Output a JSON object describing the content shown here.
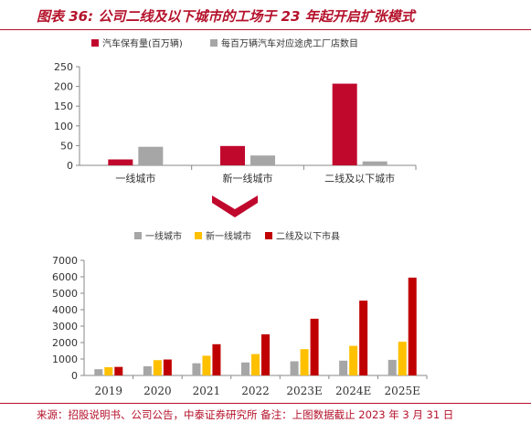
{
  "title": "图表 36: 公司二线及以下城市的工场于 23 年起开启扩张模式",
  "source": "来源：招股说明书、公司公告，中泰证券研究所 备注：上图数据截止 2023 年 3 月 31 日",
  "colors": {
    "red": "#c0082d",
    "gray": "#a6a6a6",
    "yellow": "#ffc000",
    "darkred": "#c00000",
    "arrow": "#c0082d",
    "accent": "#b5122b"
  },
  "chart_data": [
    {
      "type": "bar",
      "categories": [
        "一线城市",
        "新一线城市",
        "二线及以下城市"
      ],
      "series": [
        {
          "name": "汽车保有量(百万辆)",
          "values": [
            15,
            49,
            207
          ]
        },
        {
          "name": "每百万辆汽车对应途虎工厂店数目",
          "values": [
            47,
            25,
            10
          ]
        }
      ],
      "ylim": [
        0,
        250
      ],
      "yticks": [
        0,
        50,
        100,
        150,
        200,
        250
      ],
      "legend": "top"
    },
    {
      "type": "bar",
      "categories": [
        "2019",
        "2020",
        "2021",
        "2022",
        "2023E",
        "2024E",
        "2025E"
      ],
      "series": [
        {
          "name": "一线城市",
          "values": [
            380,
            560,
            740,
            790,
            860,
            900,
            950
          ]
        },
        {
          "name": "新一线城市",
          "values": [
            500,
            930,
            1200,
            1300,
            1600,
            1800,
            2050
          ]
        },
        {
          "name": "二线及以下市县",
          "values": [
            520,
            970,
            1900,
            2500,
            3450,
            4550,
            5950
          ]
        }
      ],
      "ylim": [
        0,
        7000
      ],
      "yticks": [
        0,
        1000,
        2000,
        3000,
        4000,
        5000,
        6000,
        7000
      ],
      "legend": "top"
    }
  ]
}
